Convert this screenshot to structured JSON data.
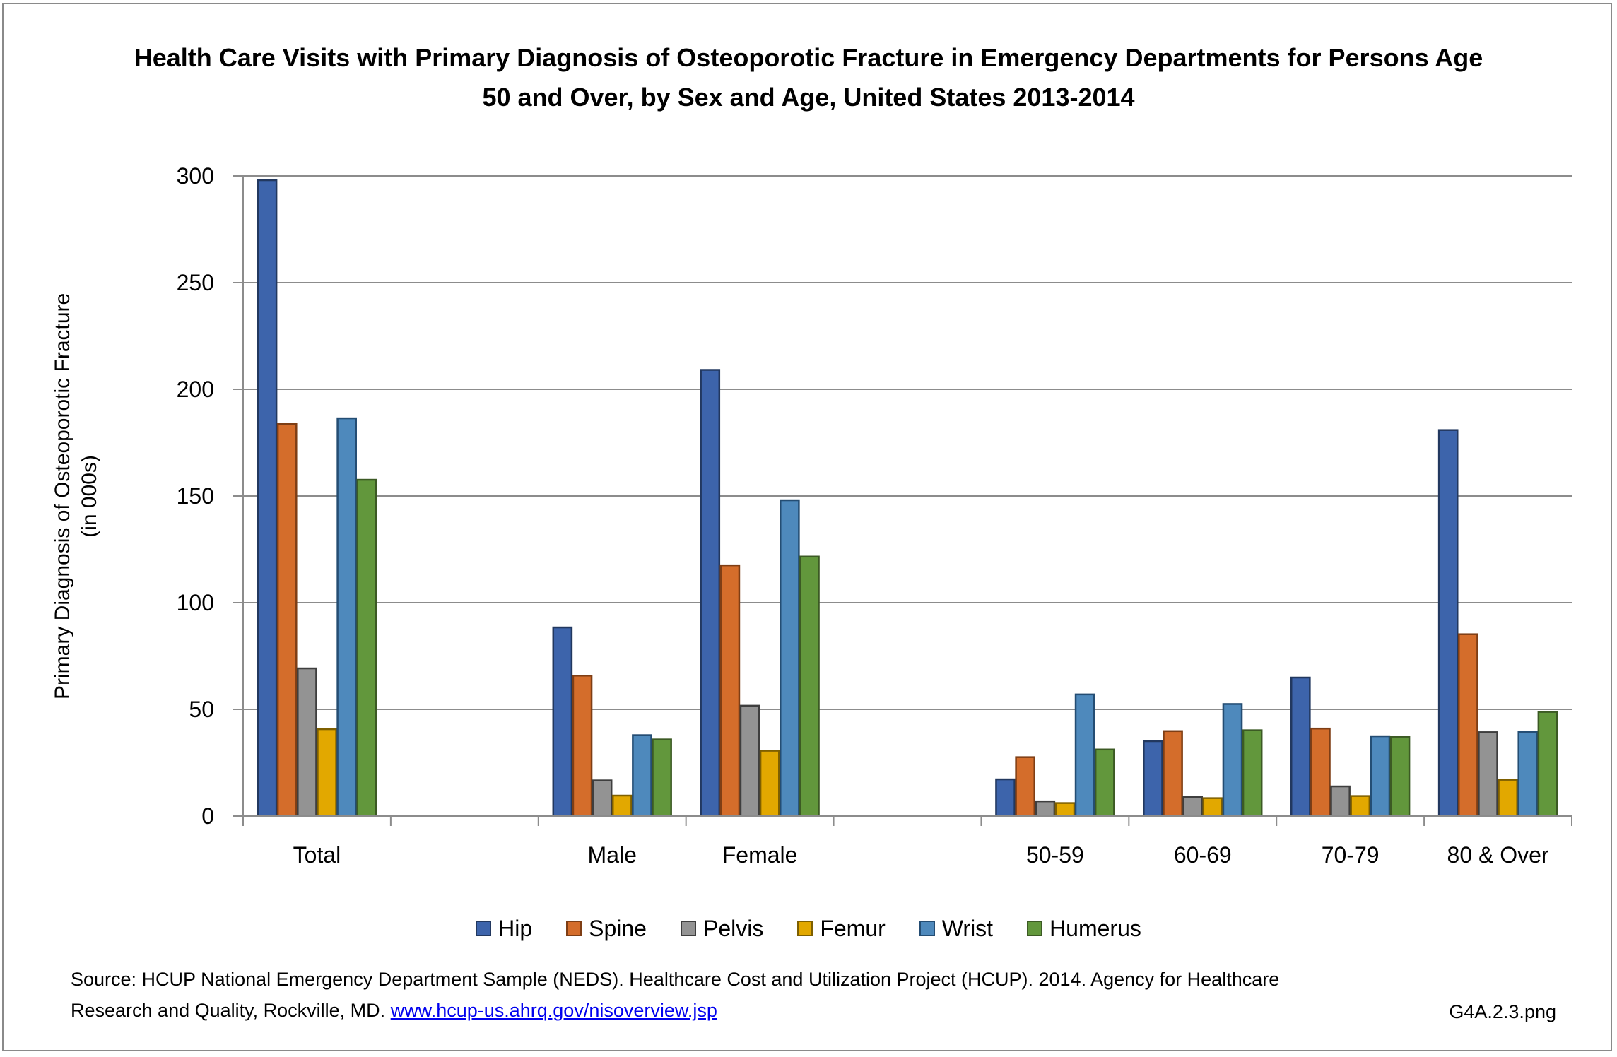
{
  "chart_data": {
    "type": "bar",
    "title": "Health Care Visits with Primary Diagnosis of Osteoporotic Fracture in Emergency Departments for Persons Age 50 and Over, by Sex and Age, United States 2013-2014",
    "title_lines": [
      "Health Care Visits with Primary Diagnosis of Osteoporotic Fracture in Emergency Departments for Persons Age",
      "50 and Over, by Sex and Age, United States 2013-2014"
    ],
    "xlabel": "",
    "ylabel": "Primary Diagnosis of Osteoporotic Fracture (in 000s)",
    "ylabel_lines": [
      "Primary Diagnosis of Osteoporotic Fracture",
      "(in 000s)"
    ],
    "ylim": [
      0,
      300
    ],
    "yticks": [
      0,
      50,
      100,
      150,
      200,
      250,
      300
    ],
    "grid": true,
    "legend_position": "bottom",
    "categories": [
      "Total",
      "",
      "Male",
      "Female",
      "",
      "50-59",
      "60-69",
      "70-79",
      "80 & Over"
    ],
    "series": [
      {
        "name": "Hip",
        "color": "#3D64AB",
        "border": "#22385F",
        "values": [
          298,
          null,
          88.4,
          209.1,
          null,
          17.2,
          35.1,
          64.9,
          180.9
        ]
      },
      {
        "name": "Spine",
        "color": "#D46D2B",
        "border": "#7E3E15",
        "values": [
          183.8,
          null,
          65.8,
          117.5,
          null,
          27.6,
          39.8,
          41.0,
          85.2
        ]
      },
      {
        "name": "Pelvis",
        "color": "#939393",
        "border": "#3E3E3E",
        "values": [
          69.2,
          null,
          16.7,
          51.7,
          null,
          6.9,
          8.9,
          13.9,
          39.3
        ]
      },
      {
        "name": "Femur",
        "color": "#E2A800",
        "border": "#7E5F00",
        "values": [
          40.7,
          null,
          9.6,
          30.6,
          null,
          6.1,
          8.4,
          9.4,
          17.0
        ]
      },
      {
        "name": "Wrist",
        "color": "#4E89BC",
        "border": "#244D73",
        "values": [
          186.4,
          null,
          37.9,
          148.0,
          null,
          57.0,
          52.5,
          37.4,
          39.5
        ]
      },
      {
        "name": "Humerus",
        "color": "#62973C",
        "border": "#3C5A24",
        "values": [
          157.6,
          null,
          35.9,
          121.6,
          null,
          31.2,
          40.2,
          37.2,
          48.8
        ]
      }
    ]
  },
  "footer": {
    "source_text_1": "Source: HCUP National Emergency Department Sample (NEDS). Healthcare Cost and Utilization Project (HCUP). 2014. Agency for Healthcare",
    "source_text_2": "Research and Quality, Rockville, MD.",
    "source_link": "www.hcup-us.ahrq.gov/nisoverview.jsp",
    "file_id": "G4A.2.3.png"
  }
}
